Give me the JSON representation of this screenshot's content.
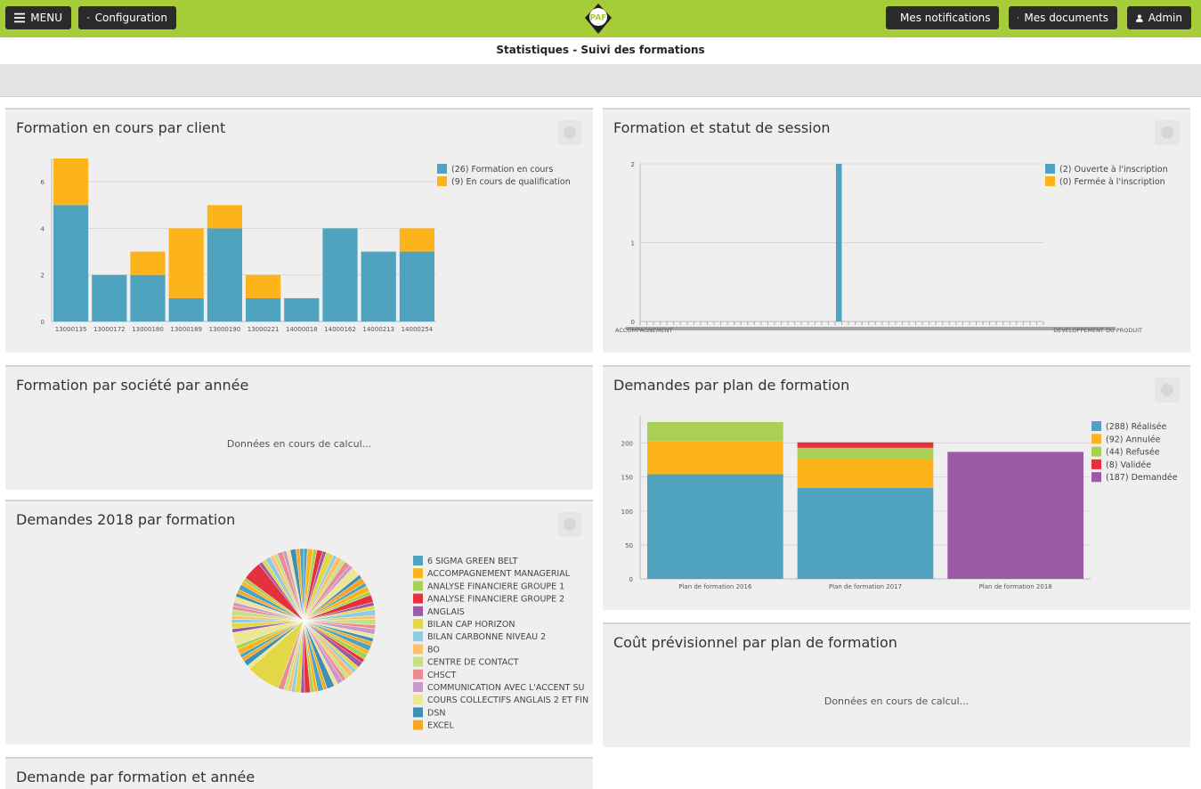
{
  "topbar": {
    "menu_label": "MENU",
    "config_label": "Configuration",
    "logo_text": "PAF",
    "notifications_label": "Mes notifications",
    "documents_label": "Mes documents",
    "admin_label": "Admin",
    "bar_color": "#a7cc3a"
  },
  "page_title": "Statistiques - Suivi des formations",
  "panels": {
    "p1_title": "Formation en cours par client",
    "p2_title": "Formation et statut de session",
    "p3_title": "Formation par société par année",
    "p3_loading": "Données en cours de calcul...",
    "p4_title": "Demandes par plan de formation",
    "p5_title": "Demandes 2018 par formation",
    "p6_title": "Coût prévisionnel par plan de formation",
    "p6_loading": "Données en cours de calcul...",
    "p7_title": "Demande par formation et année"
  },
  "chart_data": [
    {
      "type": "bar",
      "stacked": true,
      "title": "Formation en cours par client",
      "categories": [
        "13000135",
        "13000172",
        "13000180",
        "13000189",
        "13000190",
        "13000221",
        "14000018",
        "14000162",
        "14000213",
        "14000254"
      ],
      "series": [
        {
          "name": "(26) Formation en cours",
          "color": "#4fa3bf",
          "values": [
            5,
            2,
            2,
            1,
            4,
            1,
            1,
            4,
            3,
            3
          ]
        },
        {
          "name": "(9) En cours de qualification",
          "color": "#fdb31a",
          "values": [
            2,
            0,
            1,
            3,
            1,
            1,
            0,
            0,
            0,
            1
          ]
        }
      ],
      "yticks": [
        0,
        2,
        4,
        6
      ],
      "ylim": [
        0,
        7
      ],
      "grid": true,
      "legend": "top-right"
    },
    {
      "type": "bar",
      "title": "Formation et statut de session",
      "categories_note": "many overlapping illegible category labels",
      "x_labels_visible": [
        "ACCOMPAGNEMENT",
        "DEVELOPPEMENT DU PRODUIT"
      ],
      "category_count": 60,
      "highlight_index": 29,
      "series": [
        {
          "name": "(2) Ouverte à l'inscription",
          "color": "#4fa3bf",
          "nonzero_value": 2
        },
        {
          "name": "(0) Fermée à l'inscription",
          "color": "#fdb31a",
          "nonzero_value": 0
        }
      ],
      "yticks": [
        0,
        1,
        2
      ],
      "ylim": [
        0,
        2
      ],
      "legend": "top-right"
    },
    {
      "type": "bar",
      "stacked": true,
      "title": "Demandes par plan de formation",
      "categories": [
        "Plan de formation 2016",
        "Plan de formation 2017",
        "Plan de formation 2018"
      ],
      "series": [
        {
          "name": "(288) Réalisée",
          "color": "#4fa3bf",
          "values": [
            154,
            134,
            0
          ]
        },
        {
          "name": "(92) Annulée",
          "color": "#fdb31a",
          "values": [
            49,
            43,
            0
          ]
        },
        {
          "name": "(44) Refusée",
          "color": "#a9cf54",
          "values": [
            28,
            16,
            0
          ]
        },
        {
          "name": "(8) Validée",
          "color": "#e3313e",
          "values": [
            0,
            8,
            0
          ]
        },
        {
          "name": "(187) Demandée",
          "color": "#9b59a6",
          "values": [
            0,
            0,
            187
          ]
        }
      ],
      "yticks": [
        0,
        50,
        100,
        150,
        200
      ],
      "ylim": [
        0,
        240
      ],
      "grid": true,
      "legend": "top-right"
    },
    {
      "type": "pie",
      "title": "Demandes 2018 par formation",
      "legend": "right",
      "legend_items": [
        {
          "label": "6 SIGMA GREEN BELT",
          "color": "#4fa3bf"
        },
        {
          "label": "ACCOMPAGNEMENT MANAGERIAL",
          "color": "#fdb31a"
        },
        {
          "label": "ANALYSE FINANCIERE GROUPE 1",
          "color": "#a9cf54"
        },
        {
          "label": "ANALYSE FINANCIERE GROUPE 2",
          "color": "#e3313e"
        },
        {
          "label": "ANGLAIS",
          "color": "#9b59a6"
        },
        {
          "label": "BILAN CAP HORIZON",
          "color": "#e2d845"
        },
        {
          "label": "BILAN CARBONNE NIVEAU 2",
          "color": "#8fcbe3"
        },
        {
          "label": "BO",
          "color": "#fbc16a"
        },
        {
          "label": "CENTRE DE CONTACT",
          "color": "#c4e08a"
        },
        {
          "label": "CHSCT",
          "color": "#ec8b92"
        },
        {
          "label": "COMMUNICATION AVEC L'ACCENT SU",
          "color": "#c89ac8"
        },
        {
          "label": "COURS COLLECTIFS ANGLAIS 2 ET FIN",
          "color": "#ede59a"
        },
        {
          "label": "DSN",
          "color": "#3f8fb0"
        },
        {
          "label": "EXCEL",
          "color": "#f5a623"
        }
      ],
      "values": [
        2,
        3,
        2,
        3,
        2,
        4,
        2,
        3,
        2,
        3,
        2,
        5,
        2,
        3,
        2,
        3,
        2,
        4,
        2,
        2,
        3,
        2,
        3,
        2,
        3,
        2,
        2,
        2,
        3,
        2,
        3,
        2,
        3,
        2,
        2,
        3,
        2,
        2,
        3,
        2,
        4,
        2,
        3,
        2,
        2,
        3,
        2,
        3,
        2,
        2,
        2,
        3,
        18,
        2,
        3,
        2,
        2,
        3,
        2,
        7,
        2,
        3,
        2,
        2,
        3,
        2,
        2,
        3,
        2,
        2,
        3,
        2,
        2,
        10,
        2,
        2,
        3,
        2,
        2,
        3,
        2,
        2,
        3,
        2,
        2
      ]
    }
  ]
}
